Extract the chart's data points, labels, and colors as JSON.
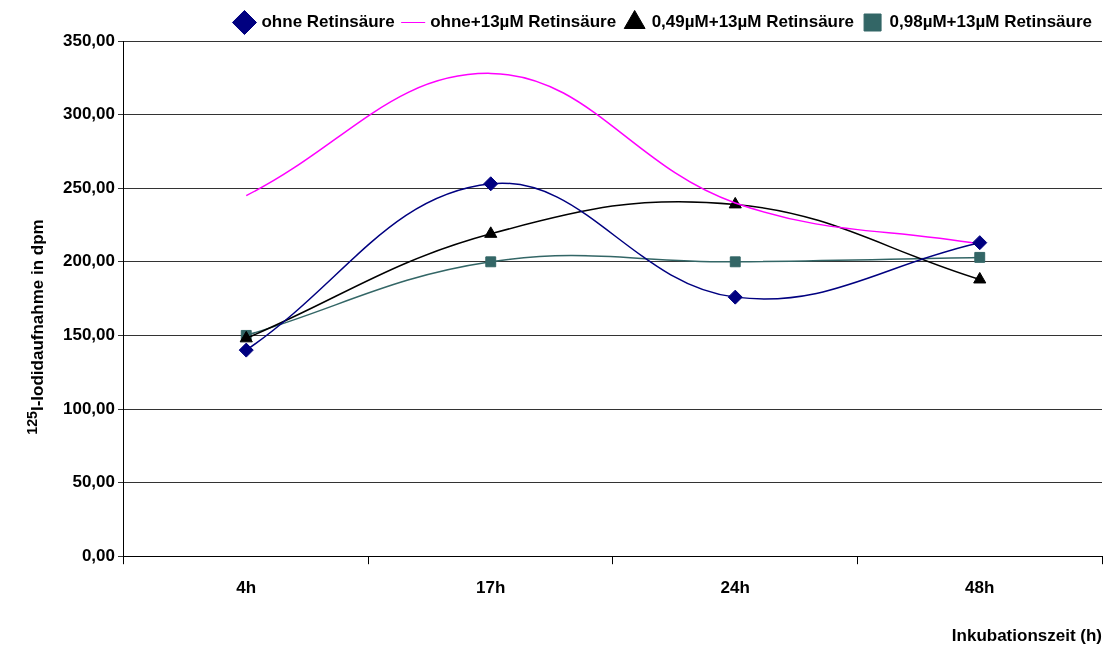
{
  "chart_data": {
    "type": "line",
    "xlabel": "Inkubationszeit (h)",
    "ylabel": "$^{125}$I-Iodidaufnahme in dpm",
    "categories": [
      "4h",
      "17h",
      "24h",
      "48h"
    ],
    "series": [
      {
        "name": "ohne Retinsäure",
        "color": "#000080",
        "marker": "diamond",
        "values": [
          140,
          253,
          176,
          213
        ]
      },
      {
        "name": "ohne+13µM Retinsäure",
        "color": "#ff00ff",
        "marker": "none",
        "values": [
          245,
          328,
          240,
          212
        ]
      },
      {
        "name": "0,49µM+13µM Retinsäure",
        "color": "#000000",
        "marker": "triangle",
        "values": [
          148,
          219,
          239,
          188
        ]
      },
      {
        "name": "0,98µM+13µM Retinsäure",
        "color": "#336666",
        "marker": "square",
        "values": [
          150,
          200,
          200,
          203
        ]
      }
    ],
    "ylim": [
      0,
      350
    ],
    "yticks": [
      {
        "value": 0,
        "label": "0,00"
      },
      {
        "value": 50,
        "label": "50,00"
      },
      {
        "value": 100,
        "label": "100,00"
      },
      {
        "value": 150,
        "label": "150,00"
      },
      {
        "value": 200,
        "label": "200,00"
      },
      {
        "value": 250,
        "label": "250,00"
      },
      {
        "value": 300,
        "label": "300,00"
      },
      {
        "value": 350,
        "label": "350,00"
      }
    ],
    "grid": "y",
    "legend": "top right",
    "line_style": "solid"
  }
}
